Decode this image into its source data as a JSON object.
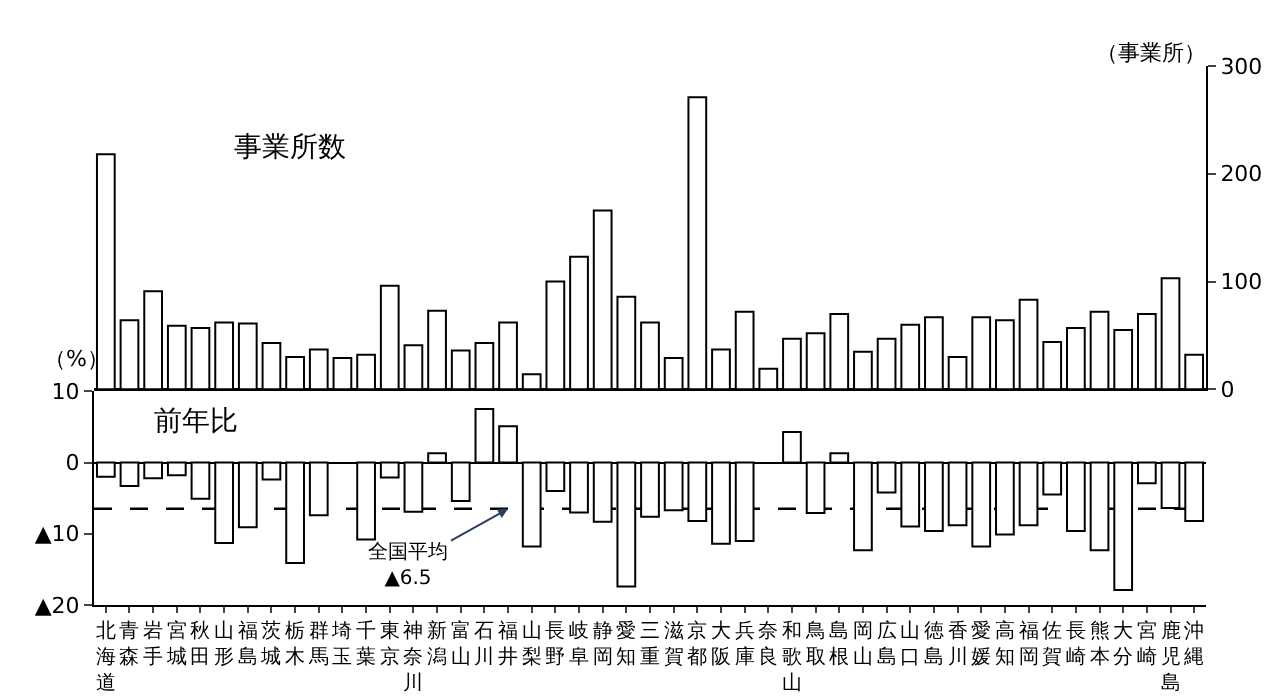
{
  "chart_data": [
    {
      "type": "bar",
      "title": "事業所数",
      "ylabel": "（事業所）",
      "categories": [
        "北海道",
        "青森",
        "岩手",
        "宮城",
        "秋田",
        "山形",
        "福島",
        "茨城",
        "栃木",
        "群馬",
        "埼玉",
        "千葉",
        "東京",
        "神奈川",
        "新潟",
        "富山",
        "石川",
        "福井",
        "山梨",
        "長野",
        "岐阜",
        "静岡",
        "愛知",
        "三重",
        "滋賀",
        "京都",
        "大阪",
        "兵庫",
        "奈良",
        "和歌山",
        "鳥取",
        "島根",
        "岡山",
        "広島",
        "山口",
        "徳島",
        "香川",
        "愛媛",
        "高知",
        "福岡",
        "佐賀",
        "長崎",
        "熊本",
        "大分",
        "宮崎",
        "鹿児島",
        "沖縄"
      ],
      "values": [
        218,
        64,
        91,
        59,
        57,
        62,
        61,
        43,
        30,
        37,
        29,
        32,
        96,
        41,
        73,
        36,
        43,
        62,
        14,
        100,
        123,
        166,
        86,
        62,
        29,
        271,
        37,
        72,
        19,
        47,
        52,
        70,
        35,
        47,
        60,
        67,
        30,
        67,
        64,
        83,
        44,
        57,
        72,
        55,
        70,
        103,
        32
      ],
      "color": "#ffffff",
      "ylim": [
        0,
        300
      ],
      "yticks": [
        0,
        100,
        200,
        300
      ],
      "tick_labels": "y"
    },
    {
      "type": "bar",
      "title": "前年比",
      "ylabel": "（%）",
      "categories": [
        "北海道",
        "青森",
        "岩手",
        "宮城",
        "秋田",
        "山形",
        "福島",
        "茨城",
        "栃木",
        "群馬",
        "埼玉",
        "千葉",
        "東京",
        "神奈川",
        "新潟",
        "富山",
        "石川",
        "福井",
        "山梨",
        "長野",
        "岐阜",
        "静岡",
        "愛知",
        "三重",
        "滋賀",
        "京都",
        "大阪",
        "兵庫",
        "奈良",
        "和歌山",
        "鳥取",
        "島根",
        "岡山",
        "広島",
        "山口",
        "徳島",
        "香川",
        "愛媛",
        "高知",
        "福岡",
        "佐賀",
        "長崎",
        "熊本",
        "大分",
        "宮崎",
        "鹿児島",
        "沖縄"
      ],
      "values": [
        -2.0,
        -3.3,
        -2.2,
        -1.8,
        -5.1,
        -11.3,
        -9.1,
        -2.4,
        -14.1,
        -7.4,
        null,
        -10.8,
        -2.1,
        -6.9,
        1.3,
        -5.4,
        7.5,
        5.1,
        -11.8,
        -4.0,
        -7.0,
        -8.3,
        -17.4,
        -7.6,
        -6.7,
        -8.2,
        -11.4,
        -11.0,
        null,
        4.3,
        -7.1,
        1.3,
        -12.3,
        -4.2,
        -9.0,
        -9.6,
        -8.8,
        -11.8,
        -10.1,
        -8.8,
        -4.5,
        -9.6,
        -12.3,
        -17.9,
        -2.9,
        -6.4,
        -8.2
      ],
      "color": "#ffffff",
      "ylim": [
        -20,
        10
      ],
      "yticks": [
        {
          "value": -20,
          "label": "▲20"
        },
        {
          "value": -10,
          "label": "▲10"
        },
        0,
        10
      ],
      "ref_lines": [
        {
          "axis": "y",
          "value": -6.5,
          "line_style": "dashed",
          "color": "#000000"
        }
      ],
      "annotations": [
        {
          "text": "全国平均\n▲6.5",
          "x": "福井",
          "y": -6.5
        }
      ]
    }
  ]
}
